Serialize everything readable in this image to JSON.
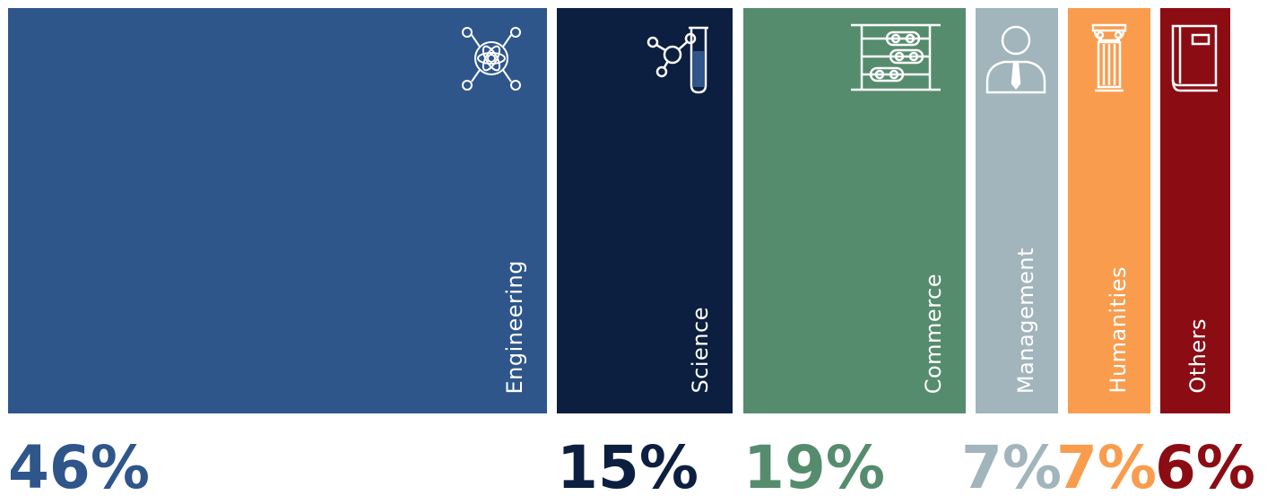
{
  "chart_data": {
    "type": "bar",
    "categories": [
      "Engineering",
      "Science",
      "Commerce",
      "Management",
      "Humanities",
      "Others"
    ],
    "values": [
      46,
      15,
      19,
      7,
      7,
      6
    ],
    "value_labels": [
      "46%",
      "15%",
      "19%",
      "7%",
      "7%",
      "6%"
    ],
    "colors": [
      "#2e568b",
      "#0c1f40",
      "#568c6e",
      "#a2b4bc",
      "#f99c4e",
      "#8c0c14"
    ],
    "icons": [
      "atom-network-icon",
      "molecule-test-tube-icon",
      "abacus-icon",
      "manager-person-icon",
      "pillar-icon",
      "book-icon"
    ],
    "title": "",
    "xlabel": "",
    "ylabel": ""
  }
}
